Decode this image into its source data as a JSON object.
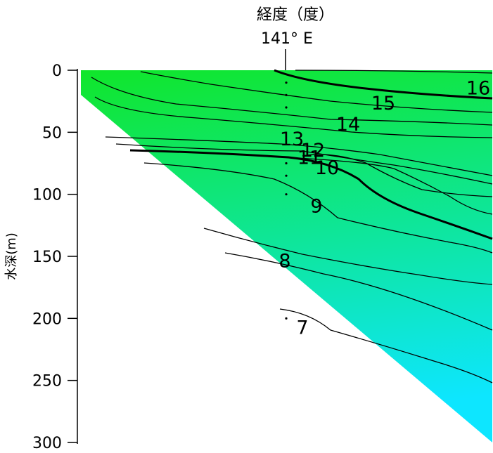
{
  "chart_data": {
    "type": "contour",
    "title": "",
    "xlabel": "経度（度）",
    "x_marker_label": "141° E",
    "ylabel": "水深(m)",
    "y_ticks": [
      0,
      50,
      100,
      150,
      200,
      250,
      300
    ],
    "ylim": [
      0,
      300
    ],
    "y_inverted": true,
    "fill_colors": {
      "shallow": "#10e62a",
      "deep": "#0de6ff"
    },
    "contour_levels": [
      7,
      8,
      9,
      10,
      11,
      12,
      13,
      14,
      15,
      16
    ],
    "contour_labels": [
      {
        "text": "16",
        "depth": 14
      },
      {
        "text": "15",
        "depth": 26
      },
      {
        "text": "14",
        "depth": 43
      },
      {
        "text": "13",
        "depth": 55
      },
      {
        "text": "12",
        "depth": 64
      },
      {
        "text": "11",
        "depth": 70
      },
      {
        "text": "10",
        "depth": 78
      },
      {
        "text": "9",
        "depth": 109
      },
      {
        "text": "8",
        "depth": 153
      },
      {
        "text": "7",
        "depth": 207
      }
    ]
  }
}
